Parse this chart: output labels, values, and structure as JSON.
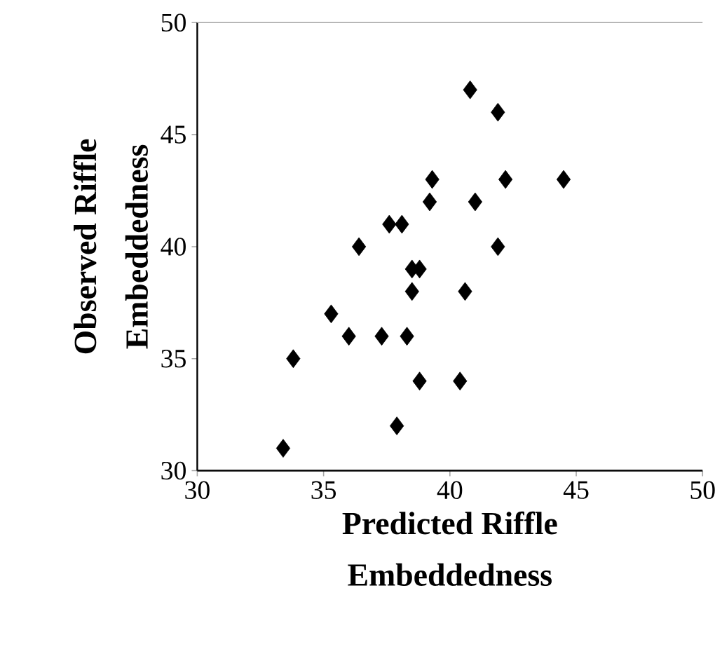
{
  "chart_data": {
    "type": "scatter",
    "xlabel": "Predicted Riffle Embeddedness",
    "ylabel": "Observed Riffle Embeddedness",
    "marker": "diamond",
    "color": "#000000",
    "x": [
      33.4,
      33.8,
      35.3,
      36.0,
      37.3,
      38.3,
      38.8,
      40.4,
      37.9,
      38.5,
      40.6,
      38.5,
      38.8,
      40.8,
      41.9,
      39.3,
      42.2,
      44.5,
      39.2,
      41.0,
      37.6,
      38.1,
      36.4,
      41.9
    ],
    "values": [
      31,
      35,
      37,
      36,
      36,
      36,
      34,
      34,
      32,
      38,
      38,
      39,
      39,
      47,
      46,
      43,
      43,
      43,
      42,
      42,
      41,
      41,
      40,
      40
    ],
    "xlim": [
      30,
      50
    ],
    "ylim": [
      30,
      50
    ],
    "xticks": [
      30,
      35,
      40,
      45,
      50
    ],
    "yticks": [
      30,
      35,
      40,
      45,
      50
    ],
    "grid": false
  }
}
